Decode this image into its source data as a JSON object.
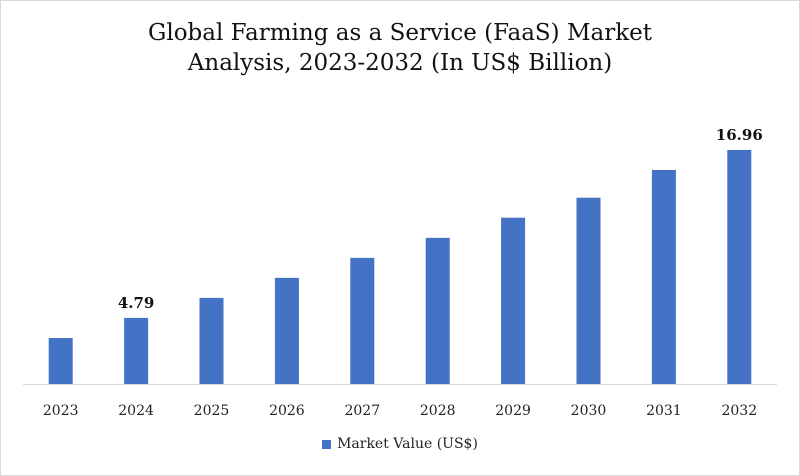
{
  "chart_data": {
    "type": "bar",
    "title_lines": [
      "Global Farming as a Service (FaaS) Market",
      "Analysis, 2023-2032 (In US$ Billion)"
    ],
    "categories": [
      "2023",
      "2024",
      "2025",
      "2026",
      "2027",
      "2028",
      "2029",
      "2030",
      "2031",
      "2032"
    ],
    "series": [
      {
        "name": "Market Value (US$)",
        "color": "#4472C4",
        "values": [
          3.33,
          4.79,
          6.24,
          7.69,
          9.14,
          10.59,
          12.05,
          13.5,
          15.51,
          16.96
        ]
      }
    ],
    "data_labels": [
      {
        "category": "2024",
        "text": "4.79"
      },
      {
        "category": "2032",
        "text": "16.96"
      }
    ],
    "ylim": [
      0,
      20
    ],
    "grid": false,
    "legend_position": "bottom"
  }
}
